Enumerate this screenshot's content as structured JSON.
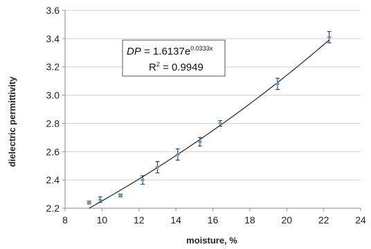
{
  "chart_data": {
    "type": "scatter",
    "title": "",
    "xlabel": "moisture, %",
    "ylabel": "dielectric permittivity",
    "xlim": [
      8,
      24
    ],
    "ylim": [
      2.2,
      3.6
    ],
    "xticks": [
      8,
      10,
      12,
      14,
      16,
      18,
      20,
      22,
      24
    ],
    "yticks": [
      "2.2",
      "2.4",
      "2.6",
      "2.8",
      "3.0",
      "3.2",
      "3.4",
      "3.6"
    ],
    "grid": "horizontal",
    "marker_color": "#5b9bd5",
    "series": [
      {
        "x": [
          9.3,
          9.9,
          11.0,
          12.2,
          13.0,
          14.1,
          15.3,
          16.4,
          19.5,
          22.3
        ],
        "y": [
          2.24,
          2.26,
          2.29,
          2.4,
          2.49,
          2.58,
          2.67,
          2.8,
          3.08,
          3.41
        ],
        "error": [
          0.01,
          0.02,
          0.01,
          0.03,
          0.04,
          0.04,
          0.03,
          0.02,
          0.04,
          0.04
        ]
      }
    ],
    "trendline": {
      "type": "exponential",
      "a": 1.6137,
      "b": 0.0333
    },
    "annotation": {
      "label_prefix": "DP",
      "label_eq": " = 1.6137e",
      "label_exp": "0.0333x",
      "r2_label": "R",
      "r2_sup": "2",
      "r2_value": " = 0.9949"
    }
  }
}
